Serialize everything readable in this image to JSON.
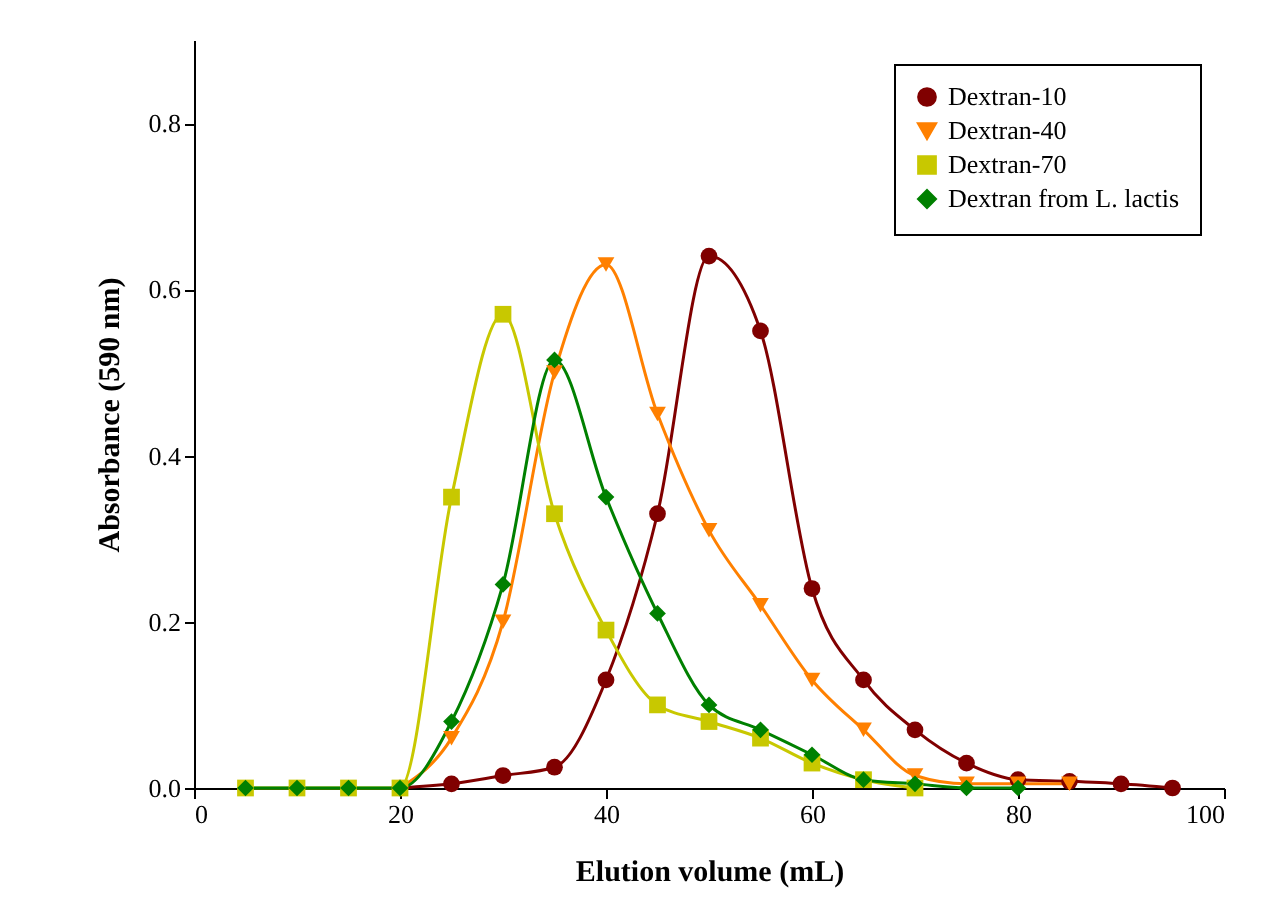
{
  "chart_data": {
    "type": "line",
    "xlabel": "Elution volume (mL)",
    "ylabel": "Absorbance (590 nm)",
    "xlim": [
      0,
      100
    ],
    "xticks": [
      0,
      20,
      40,
      60,
      80,
      100
    ],
    "ylim": [
      0,
      0.9
    ],
    "yticks": [
      {
        "value": 0,
        "label": "0.0"
      },
      0.2,
      0.4,
      0.6,
      0.8
    ],
    "grid": false,
    "legend": "top right",
    "line_style": "solid",
    "x": [
      5,
      10,
      15,
      20,
      25,
      30,
      35,
      40,
      45,
      50,
      55,
      60,
      65,
      70,
      75,
      80,
      85,
      90,
      95
    ],
    "series": [
      {
        "name": "Dextran-10",
        "color": "#800000",
        "marker": "circle",
        "values": [
          null,
          null,
          null,
          0,
          0.005,
          0.015,
          0.025,
          0.13,
          0.33,
          0.64,
          0.55,
          0.24,
          0.13,
          0.07,
          0.03,
          0.01,
          0.008,
          0.005,
          0
        ]
      },
      {
        "name": "Dextran-40",
        "color": "#ff8000",
        "marker": "triangle",
        "values": [
          null,
          null,
          null,
          0,
          0.06,
          0.2,
          0.5,
          0.63,
          0.45,
          0.31,
          0.22,
          0.13,
          0.07,
          0.015,
          0.005,
          0.005,
          0.005,
          null,
          null
        ]
      },
      {
        "name": "Dextran-70",
        "color": "#c8c800",
        "marker": "square",
        "values": [
          0,
          0,
          0,
          0,
          0.35,
          0.57,
          0.33,
          0.19,
          0.1,
          0.08,
          0.06,
          0.03,
          0.01,
          0,
          null,
          null,
          null,
          null,
          null
        ]
      },
      {
        "name": "Dextran from L. lactis",
        "color": "#008000",
        "marker": "diamond",
        "values": [
          0,
          0,
          0,
          0,
          0.08,
          0.245,
          0.515,
          0.35,
          0.21,
          0.1,
          0.07,
          0.04,
          0.01,
          0.005,
          0,
          0,
          null,
          null,
          null
        ]
      }
    ]
  }
}
